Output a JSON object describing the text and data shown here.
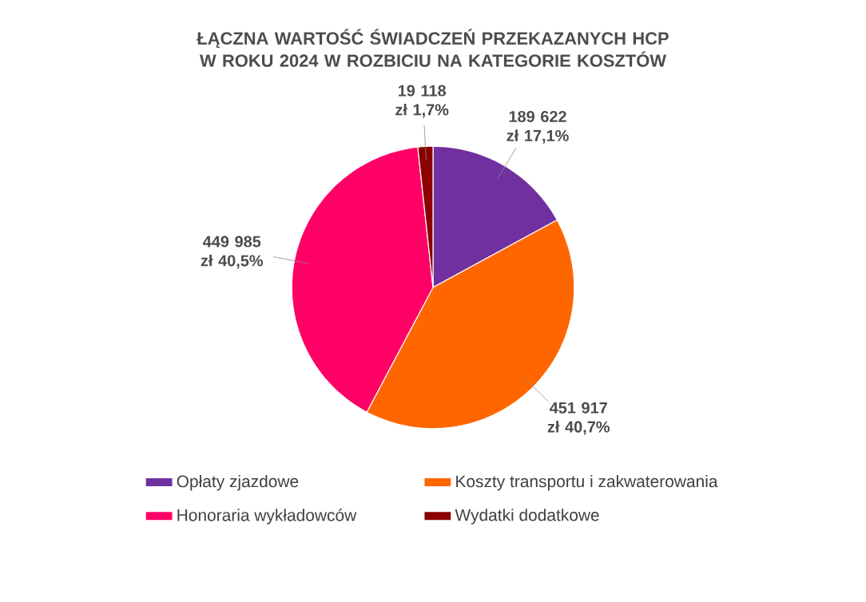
{
  "chart_data": {
    "type": "pie",
    "title": "ŁĄCZNA WARTOŚĆ ŚWIADCZEŃ PRZEKAZANYCH HCP W ROKU 2024 W ROZBICIU NA KATEGORIE KOSZTÓW",
    "categories": [
      "Opłaty zjazdowe",
      "Koszty transportu i zakwaterowania",
      "Honoraria wykładowców",
      "Wydatki dodatkowe"
    ],
    "values": [
      189622,
      451917,
      449985,
      19118
    ],
    "colors": [
      "#7030a0",
      "#ff6600",
      "#ff0066",
      "#8b0000"
    ],
    "value_labels": [
      "189 622 zł 17,1%",
      "451 917 zł 40,7%",
      "449 985 zł 40,5%",
      "19 118 zł 1,7%"
    ],
    "legend": "bottom"
  }
}
